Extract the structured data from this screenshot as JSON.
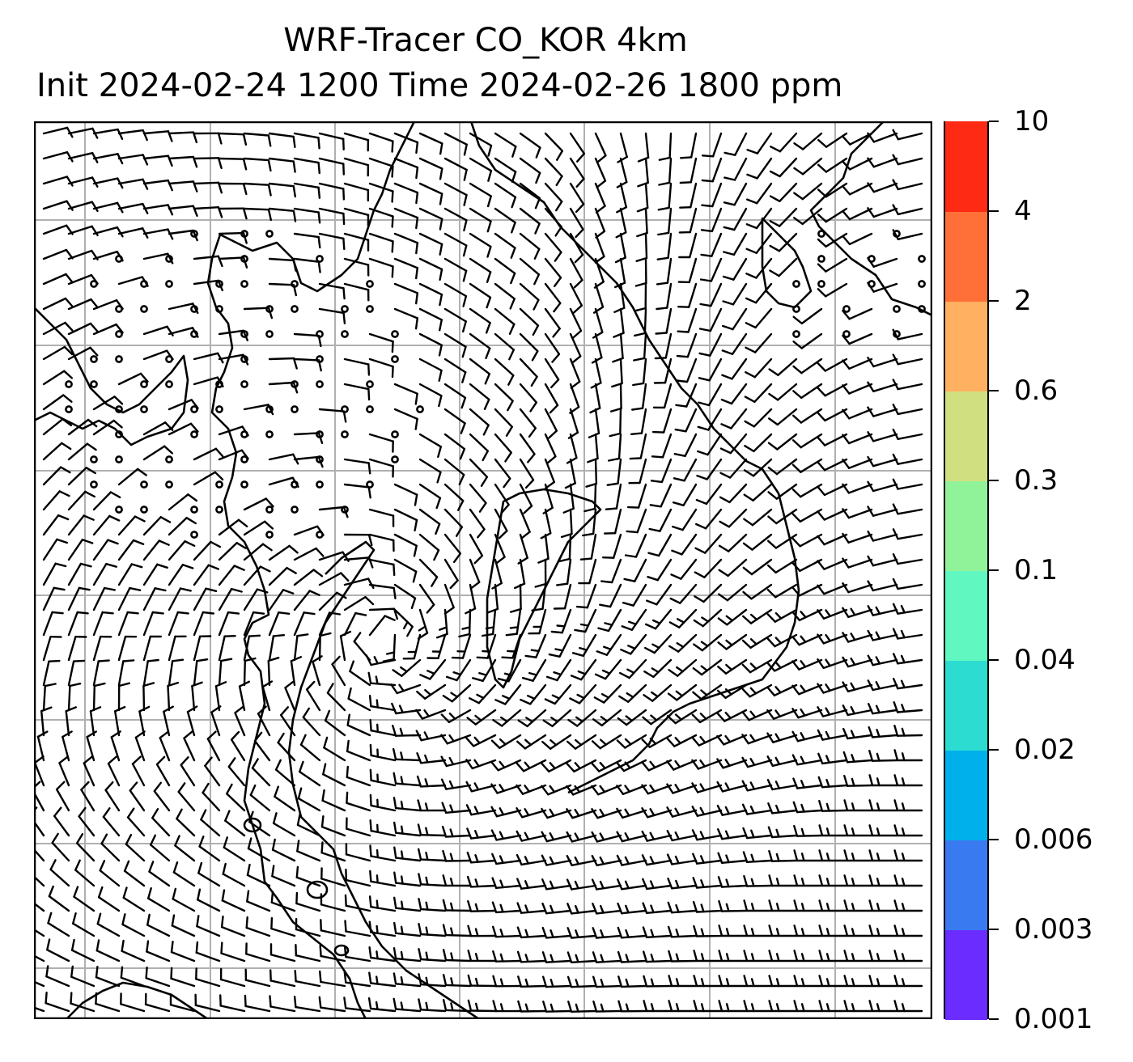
{
  "title": {
    "line1": "WRF-Tracer CO_KOR 4km",
    "line2": "Init 2024-02-24 1200 Time 2024-02-26 1800 ppm"
  },
  "colorbar": {
    "levels": [
      "0.001",
      "0.003",
      "0.006",
      "0.02",
      "0.04",
      "0.1",
      "0.3",
      "0.6",
      "2",
      "4",
      "10"
    ],
    "colors": [
      "#6a2cff",
      "#3a7af0",
      "#00b0ea",
      "#2cdcd0",
      "#60f8c0",
      "#90f39a",
      "#d0e080",
      "#ffb060",
      "#ff7038",
      "#ff2a14"
    ]
  },
  "map": {
    "background": "#ffffff",
    "gridline_color": "#b0b0b0",
    "coastline_color": "#000000",
    "symbol": "wind-barbs"
  }
}
